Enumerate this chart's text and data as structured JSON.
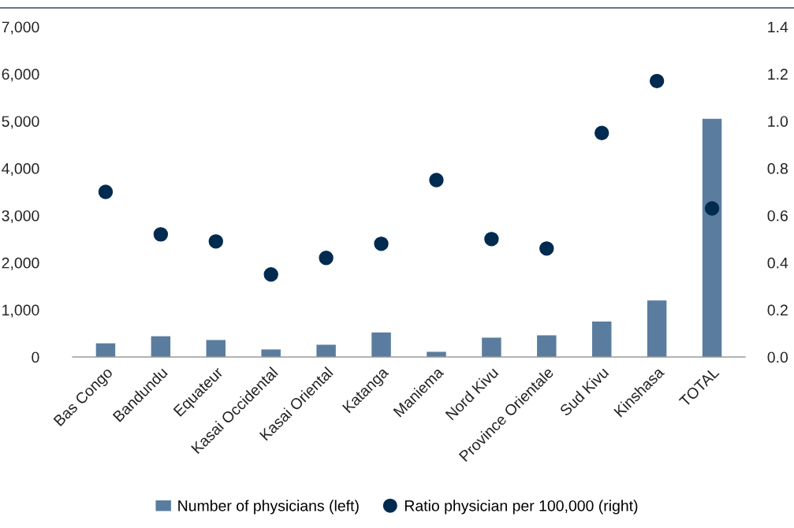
{
  "chart_data": {
    "type": "bar",
    "categories": [
      "Bas Congo",
      "Bandundu",
      "Equateur",
      "Kasai Occidental",
      "Kasai Oriental",
      "Katanga",
      "Maniema",
      "Nord Kivu",
      "Province Orientale",
      "Sud Kivu",
      "Kinshasa",
      "TOTAL"
    ],
    "series": [
      {
        "name": "Number of physicians (left)",
        "color": "#5a7d9f",
        "values": [
          290,
          440,
          360,
          160,
          260,
          520,
          110,
          410,
          460,
          750,
          1200,
          5050
        ]
      },
      {
        "name": "Ratio physician per 100,000 (right)",
        "type": "scatter",
        "axis": "y2",
        "color": "#002b50",
        "marker": "circle",
        "values": [
          0.7,
          0.52,
          0.49,
          0.35,
          0.42,
          0.48,
          0.75,
          0.5,
          0.46,
          0.95,
          1.17,
          0.63
        ]
      }
    ],
    "ylim": [
      0,
      7000
    ],
    "yticks": [
      {
        "value": 0,
        "label": "0"
      },
      {
        "value": 1000,
        "label": "1,000"
      },
      {
        "value": 2000,
        "label": "2,000"
      },
      {
        "value": 3000,
        "label": "3,000"
      },
      {
        "value": 4000,
        "label": "4,000"
      },
      {
        "value": 5000,
        "label": "5,000"
      },
      {
        "value": 6000,
        "label": "6,000"
      },
      {
        "value": 7000,
        "label": "7,000"
      }
    ],
    "y2lim": [
      0,
      1.4
    ],
    "y2ticks": [
      {
        "value": 0,
        "label": "0.0"
      },
      {
        "value": 0.2,
        "label": "0.2"
      },
      {
        "value": 0.4,
        "label": "0.4"
      },
      {
        "value": 0.6,
        "label": "0.6"
      },
      {
        "value": 0.8,
        "label": "0.8"
      },
      {
        "value": 1.0,
        "label": "1.0"
      },
      {
        "value": 1.2,
        "label": "1.2"
      },
      {
        "value": 1.4,
        "label": "1.4"
      }
    ],
    "grid": false,
    "legend": "bottom"
  }
}
